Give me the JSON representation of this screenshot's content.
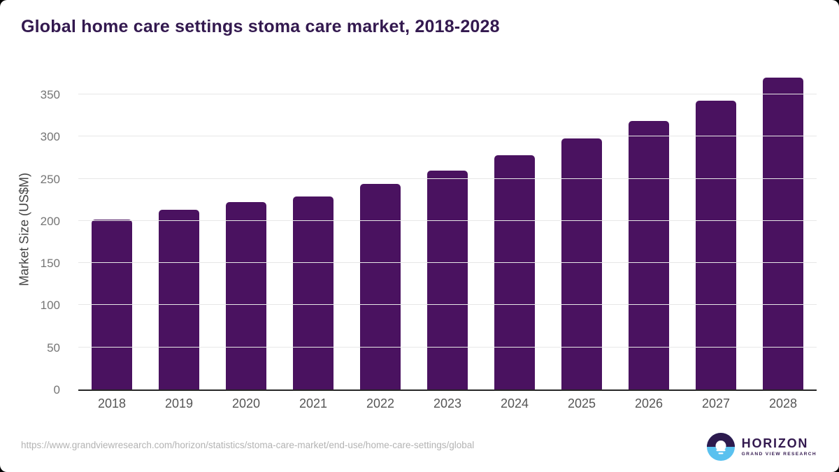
{
  "page": {
    "title": "Global home care settings stoma care market, 2018-2028"
  },
  "chart_data": {
    "type": "bar",
    "title": "Global home care settings stoma care market, 2018-2028",
    "categories": [
      "2018",
      "2019",
      "2020",
      "2021",
      "2022",
      "2023",
      "2024",
      "2025",
      "2026",
      "2027",
      "2028"
    ],
    "values": [
      202,
      213,
      222,
      229,
      244,
      260,
      278,
      298,
      319,
      343,
      370
    ],
    "xlabel": "",
    "ylabel": "Market Size (US$M)",
    "ylim": [
      0,
      380
    ],
    "yticks": [
      0,
      50,
      100,
      150,
      200,
      250,
      300,
      350
    ],
    "grid": true,
    "legend": "none",
    "bar_color": "#4a1260"
  },
  "colors": {
    "title_text": "#33194f",
    "bar": "#4a1260",
    "gridline": "#e7e7e7",
    "axis_line": "#262626",
    "y_tick_label": "#757575",
    "x_tick_label": "#555555",
    "url_text": "#b3b3b3",
    "logo_purple": "#2d1a4e",
    "logo_blue": "#5ac1ef"
  },
  "footer": {
    "source_url": "https://www.grandviewresearch.com/horizon/statistics/stoma-care-market/end-use/home-care-settings/global",
    "logo": {
      "title": "HORIZON",
      "subtitle": "GRAND VIEW RESEARCH"
    }
  }
}
